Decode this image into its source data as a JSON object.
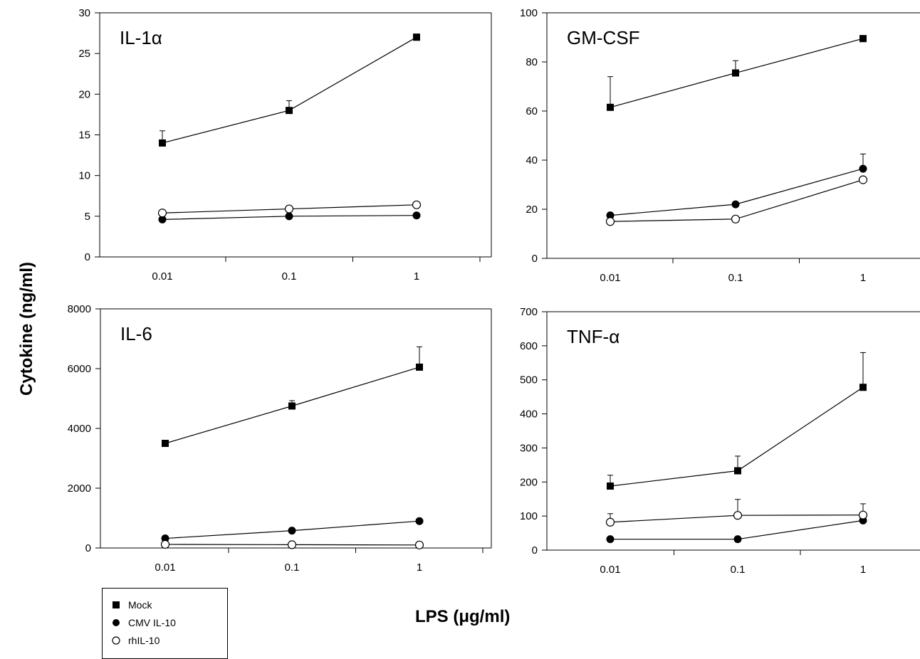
{
  "figure": {
    "y_axis_title": "Cytokine (ng/ml)",
    "x_axis_title": "LPS (μg/ml)"
  },
  "legend": [
    {
      "label": "Mock",
      "marker": "filled-square"
    },
    {
      "label": "CMV IL-10",
      "marker": "filled-circle"
    },
    {
      "label": "rhIL-10",
      "marker": "open-circle"
    }
  ],
  "chart_data": [
    {
      "type": "line",
      "panel_label": "IL-1α",
      "x_scale": "categorical",
      "categories": [
        "0.01",
        "0.1",
        "1"
      ],
      "ylim": [
        0,
        30
      ],
      "yticks": [
        0,
        5,
        10,
        15,
        20,
        25,
        30
      ],
      "grid": false,
      "series": [
        {
          "name": "Mock",
          "marker": "filled-square",
          "values": [
            14.0,
            18.0,
            27.0
          ],
          "errors": [
            1.5,
            1.2,
            0.4
          ]
        },
        {
          "name": "CMV IL-10",
          "marker": "filled-circle",
          "values": [
            4.6,
            5.0,
            5.1
          ],
          "errors": [
            0,
            0,
            0
          ]
        },
        {
          "name": "rhIL-10",
          "marker": "open-circle",
          "values": [
            5.4,
            5.9,
            6.4
          ],
          "errors": [
            0,
            0,
            0
          ]
        }
      ]
    },
    {
      "type": "line",
      "panel_label": "GM-CSF",
      "x_scale": "categorical",
      "categories": [
        "0.01",
        "0.1",
        "1"
      ],
      "ylim": [
        0,
        100
      ],
      "yticks": [
        0,
        20,
        40,
        60,
        80,
        100
      ],
      "grid": false,
      "series": [
        {
          "name": "Mock",
          "marker": "filled-square",
          "values": [
            61.5,
            75.5,
            89.5
          ],
          "errors": [
            12.5,
            5.0,
            0
          ]
        },
        {
          "name": "CMV IL-10",
          "marker": "filled-circle",
          "values": [
            17.5,
            22.0,
            36.5
          ],
          "errors": [
            0,
            0,
            6.0
          ]
        },
        {
          "name": "rhIL-10",
          "marker": "open-circle",
          "values": [
            15.0,
            16.0,
            32.0
          ],
          "errors": [
            0,
            0,
            0
          ]
        }
      ]
    },
    {
      "type": "line",
      "panel_label": "IL-6",
      "x_scale": "categorical",
      "categories": [
        "0.01",
        "0.1",
        "1"
      ],
      "ylim": [
        0,
        8000
      ],
      "yticks": [
        0,
        2000,
        4000,
        6000,
        8000
      ],
      "grid": false,
      "series": [
        {
          "name": "Mock",
          "marker": "filled-square",
          "values": [
            3500,
            4750,
            6050
          ],
          "errors": [
            0,
            180,
            680
          ]
        },
        {
          "name": "CMV IL-10",
          "marker": "filled-circle",
          "values": [
            320,
            580,
            900
          ],
          "errors": [
            0,
            0,
            0
          ]
        },
        {
          "name": "rhIL-10",
          "marker": "open-circle",
          "values": [
            120,
            110,
            100
          ],
          "errors": [
            0,
            0,
            0
          ]
        }
      ]
    },
    {
      "type": "line",
      "panel_label": "TNF-α",
      "x_scale": "categorical",
      "categories": [
        "0.01",
        "0.1",
        "1"
      ],
      "ylim": [
        0,
        700
      ],
      "yticks": [
        0,
        100,
        200,
        300,
        400,
        500,
        600,
        700
      ],
      "grid": false,
      "series": [
        {
          "name": "Mock",
          "marker": "filled-square",
          "values": [
            188,
            233,
            478
          ],
          "errors": [
            32,
            43,
            102
          ]
        },
        {
          "name": "CMV IL-10",
          "marker": "filled-circle",
          "values": [
            32,
            32,
            87
          ],
          "errors": [
            0,
            0,
            0
          ]
        },
        {
          "name": "rhIL-10",
          "marker": "open-circle",
          "values": [
            82,
            102,
            103
          ],
          "errors": [
            25,
            47,
            33
          ]
        }
      ]
    }
  ]
}
